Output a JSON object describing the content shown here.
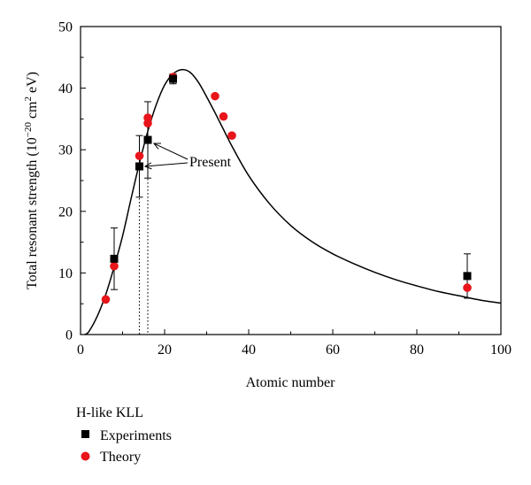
{
  "chart_data": {
    "type": "scatter",
    "xlabel": "Atomic number",
    "ylabel": {
      "prefix": "Total resonant strength (10",
      "exp1": "−20",
      "mid": " cm",
      "exp2": "2",
      "suffix": " eV)"
    },
    "xlim": [
      0,
      100
    ],
    "ylim": [
      0,
      50
    ],
    "xticks": [
      0,
      20,
      40,
      60,
      80,
      100
    ],
    "yticks": [
      0,
      10,
      20,
      30,
      40,
      50
    ],
    "grid": false,
    "legend_title": "H-like KLL",
    "legend_position": "bottom-left, below plot",
    "series": [
      {
        "name": "Experiments",
        "marker": "square",
        "color": "#000000",
        "points": [
          {
            "x": 8,
            "y": 12.3,
            "err": 5.0
          },
          {
            "x": 14,
            "y": 27.3,
            "err": 5.0
          },
          {
            "x": 16,
            "y": 31.6,
            "err": 6.2
          },
          {
            "x": 22,
            "y": 41.5,
            "err": 0.8
          },
          {
            "x": 92,
            "y": 9.5,
            "err": 3.6
          }
        ]
      },
      {
        "name": "Theory",
        "marker": "circle",
        "color": "#e8151b",
        "points": [
          {
            "x": 6,
            "y": 5.7
          },
          {
            "x": 8,
            "y": 11.1
          },
          {
            "x": 14,
            "y": 29.0
          },
          {
            "x": 16,
            "y": 34.3
          },
          {
            "x": 16,
            "y": 35.2
          },
          {
            "x": 22,
            "y": 41.8
          },
          {
            "x": 32,
            "y": 38.7
          },
          {
            "x": 34,
            "y": 35.4
          },
          {
            "x": 36,
            "y": 32.3
          },
          {
            "x": 92,
            "y": 7.6
          }
        ]
      }
    ],
    "fit_curve": [
      [
        1,
        0.0
      ],
      [
        2,
        0.5
      ],
      [
        4,
        3.0
      ],
      [
        6,
        6.5
      ],
      [
        8,
        11.0
      ],
      [
        10,
        16.0
      ],
      [
        12,
        22.0
      ],
      [
        14,
        27.8
      ],
      [
        16,
        33.0
      ],
      [
        18,
        37.3
      ],
      [
        20,
        40.5
      ],
      [
        22,
        42.3
      ],
      [
        24,
        43.0
      ],
      [
        26,
        42.6
      ],
      [
        28,
        41.0
      ],
      [
        30,
        38.6
      ],
      [
        32,
        36.0
      ],
      [
        34,
        33.3
      ],
      [
        36,
        30.6
      ],
      [
        40,
        25.8
      ],
      [
        45,
        21.2
      ],
      [
        50,
        17.7
      ],
      [
        55,
        15.1
      ],
      [
        60,
        13.1
      ],
      [
        65,
        11.5
      ],
      [
        70,
        10.1
      ],
      [
        75,
        8.9
      ],
      [
        80,
        7.9
      ],
      [
        85,
        7.0
      ],
      [
        90,
        6.3
      ],
      [
        95,
        5.6
      ],
      [
        100,
        5.1
      ]
    ],
    "annotation": {
      "text": "Present",
      "targets": [
        {
          "x": 16.2,
          "y": 31.6
        },
        {
          "x": 14.3,
          "y": 27.3
        }
      ],
      "vlines_x": [
        14,
        16
      ]
    }
  }
}
